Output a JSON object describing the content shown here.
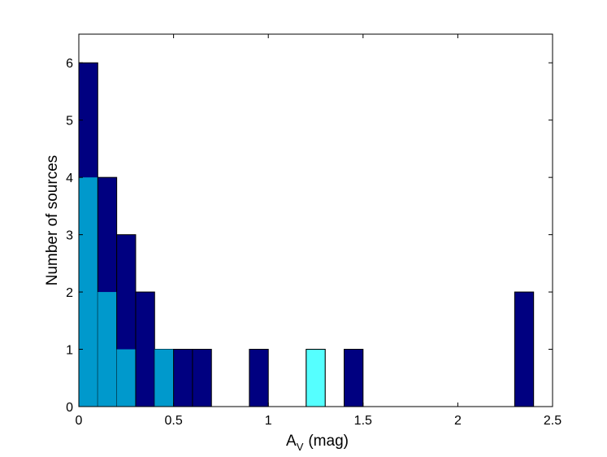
{
  "chart_data": {
    "type": "bar",
    "title": "",
    "xlabel": "A",
    "xlabel_subscript": "V",
    "xlabel_unit": "(mag)",
    "ylabel": "Number of sources",
    "xlim": [
      0,
      2.5
    ],
    "ylim": [
      0,
      6.5
    ],
    "xticks": [
      "0",
      "0.5",
      "1",
      "1.5",
      "2",
      "2.5"
    ],
    "xtick_values": [
      0,
      0.5,
      1,
      1.5,
      2,
      2.5
    ],
    "yticks": [
      "0",
      "1",
      "2",
      "3",
      "4",
      "5",
      "6"
    ],
    "ytick_values": [
      0,
      1,
      2,
      3,
      4,
      5,
      6
    ],
    "grid": false,
    "bins": [
      {
        "x0": 0.0,
        "x1": 0.1,
        "total": 6,
        "light": 4
      },
      {
        "x0": 0.1,
        "x1": 0.2,
        "total": 4,
        "light": 2
      },
      {
        "x0": 0.2,
        "x1": 0.3,
        "total": 3,
        "light": 1
      },
      {
        "x0": 0.3,
        "x1": 0.4,
        "total": 2,
        "light": 0
      },
      {
        "x0": 0.4,
        "x1": 0.5,
        "total": 1,
        "light": 1
      },
      {
        "x0": 0.5,
        "x1": 0.6,
        "total": 1,
        "light": 0
      },
      {
        "x0": 0.6,
        "x1": 0.7,
        "total": 1,
        "light": 0
      },
      {
        "x0": 0.9,
        "x1": 1.0,
        "total": 1,
        "light": 0
      },
      {
        "x0": 1.2,
        "x1": 1.3,
        "total": 1,
        "light": 0,
        "cyan": 1
      },
      {
        "x0": 1.4,
        "x1": 1.5,
        "total": 1,
        "light": 0
      },
      {
        "x0": 2.3,
        "x1": 2.4,
        "total": 2,
        "light": 0
      }
    ],
    "colors": {
      "total": "#000080",
      "light": "#0099cc",
      "cyan": "#55ffff",
      "edge": "#000000"
    }
  }
}
